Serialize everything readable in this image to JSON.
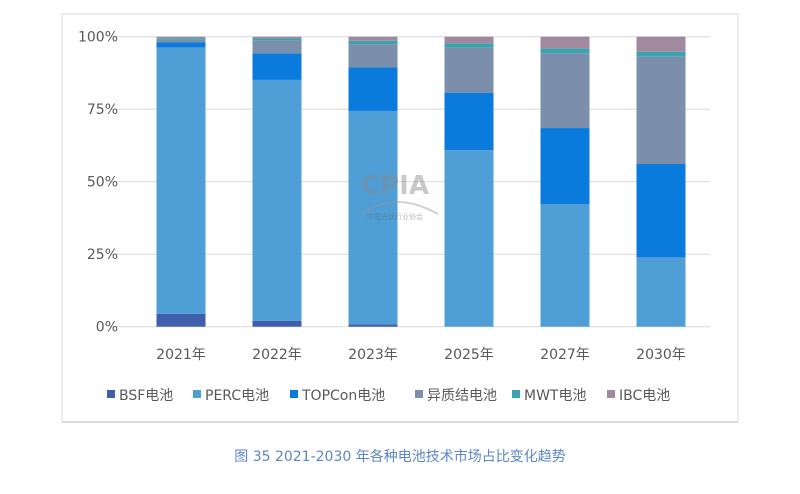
{
  "chart_data": {
    "type": "bar",
    "stacked": true,
    "percent": true,
    "caption": "图 35    2021-2030 年各种电池技术市场占比变化趋势",
    "categories": [
      "2021年",
      "2022年",
      "2023年",
      "2025年",
      "2027年",
      "2030年"
    ],
    "ylim": [
      0,
      100
    ],
    "yticks": [
      "0%",
      "25%",
      "50%",
      "75%",
      "100%"
    ],
    "grid": true,
    "legend_position": "bottom",
    "series": [
      {
        "name": "BSF电池",
        "color": "#3f5fad",
        "values": [
          4.4,
          2.0,
          0.8,
          0,
          0,
          0
        ]
      },
      {
        "name": "PERC电池",
        "color": "#4f9ed6",
        "values": [
          91.9,
          83.1,
          73.6,
          60.9,
          42.3,
          23.9
        ]
      },
      {
        "name": "TOPCon电池",
        "color": "#0a7bdc",
        "values": [
          1.7,
          9.2,
          15.0,
          19.8,
          26.2,
          32.2
        ]
      },
      {
        "name": "异质结电池",
        "color": "#7b8fac",
        "values": [
          1.0,
          4.3,
          8.0,
          15.5,
          25.8,
          37.0
        ]
      },
      {
        "name": "MWT电池",
        "color": "#3aa3ae",
        "values": [
          0.5,
          0.8,
          1.2,
          1.5,
          1.7,
          1.7
        ]
      },
      {
        "name": "IBC电池",
        "color": "#a18aa0",
        "values": [
          0.5,
          0.6,
          1.4,
          2.3,
          4.0,
          5.2
        ]
      }
    ]
  },
  "watermark": {
    "text": "CPIA",
    "subtitle": "中国光伏行业协会",
    "english": "China Photovoltaic Industry Association"
  }
}
